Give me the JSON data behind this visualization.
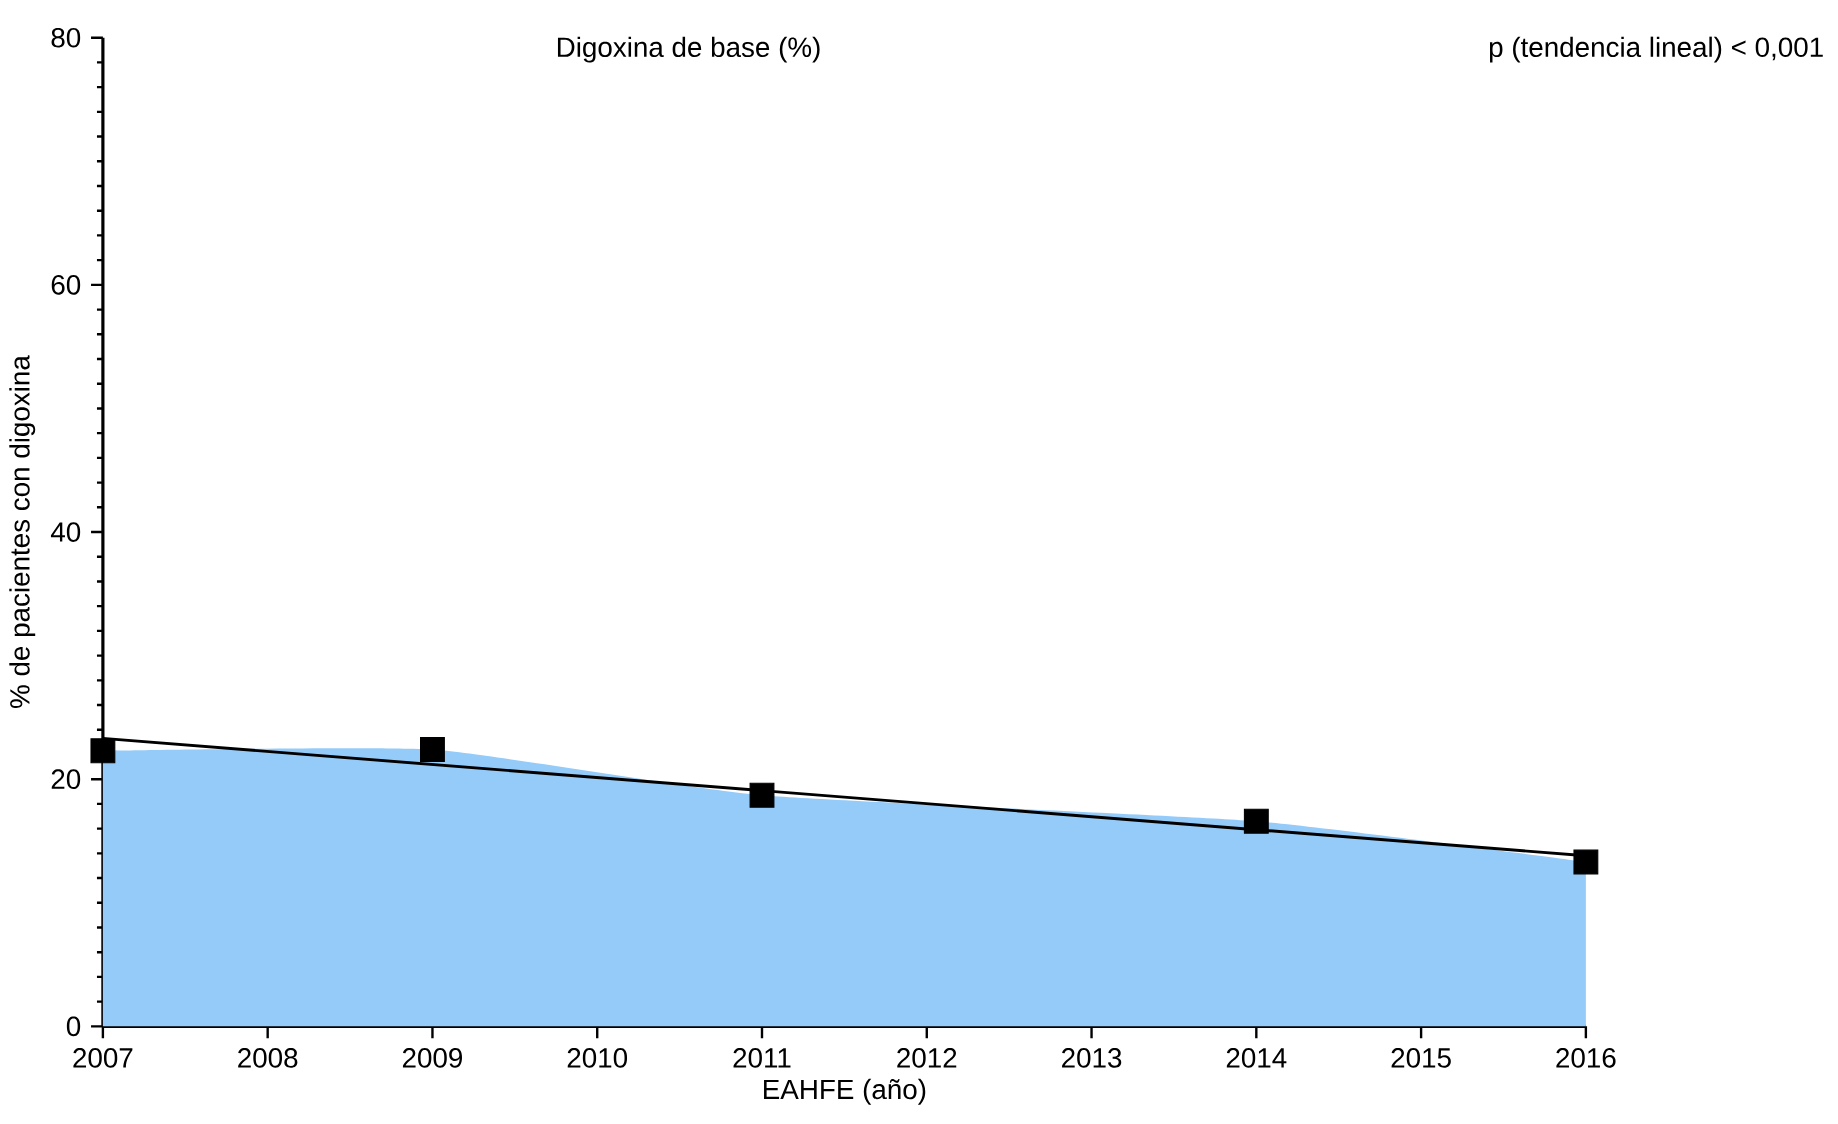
{
  "chart_data": {
    "type": "area",
    "title": "Digoxina de base (%)",
    "xlabel": "EAHFE (año)",
    "ylabel": "% de pacientes con digoxina",
    "annotations": [
      "p (tendencia lineal) < 0,001"
    ],
    "x": [
      2007,
      2009,
      2011,
      2014,
      2016
    ],
    "series": [
      {
        "color": "#95cbf8",
        "values": [
          22.3,
          22.4,
          18.7,
          16.6,
          13.3
        ]
      },
      {
        "type": "scatter",
        "color": "#000000",
        "marker": "square",
        "values": [
          22.3,
          22.4,
          18.7,
          16.6,
          13.3
        ]
      },
      {
        "type": "line",
        "color": "#000000",
        "x": [
          2007,
          2016
        ],
        "values": [
          23.3,
          13.8
        ]
      }
    ],
    "xlim": [
      2007,
      2016
    ],
    "ylim": [
      0,
      80
    ],
    "xticks": [
      2007,
      2008,
      2009,
      2010,
      2011,
      2012,
      2013,
      2014,
      2015,
      2016
    ],
    "yticks": [
      0,
      20,
      40,
      60,
      80
    ],
    "grid": false
  }
}
